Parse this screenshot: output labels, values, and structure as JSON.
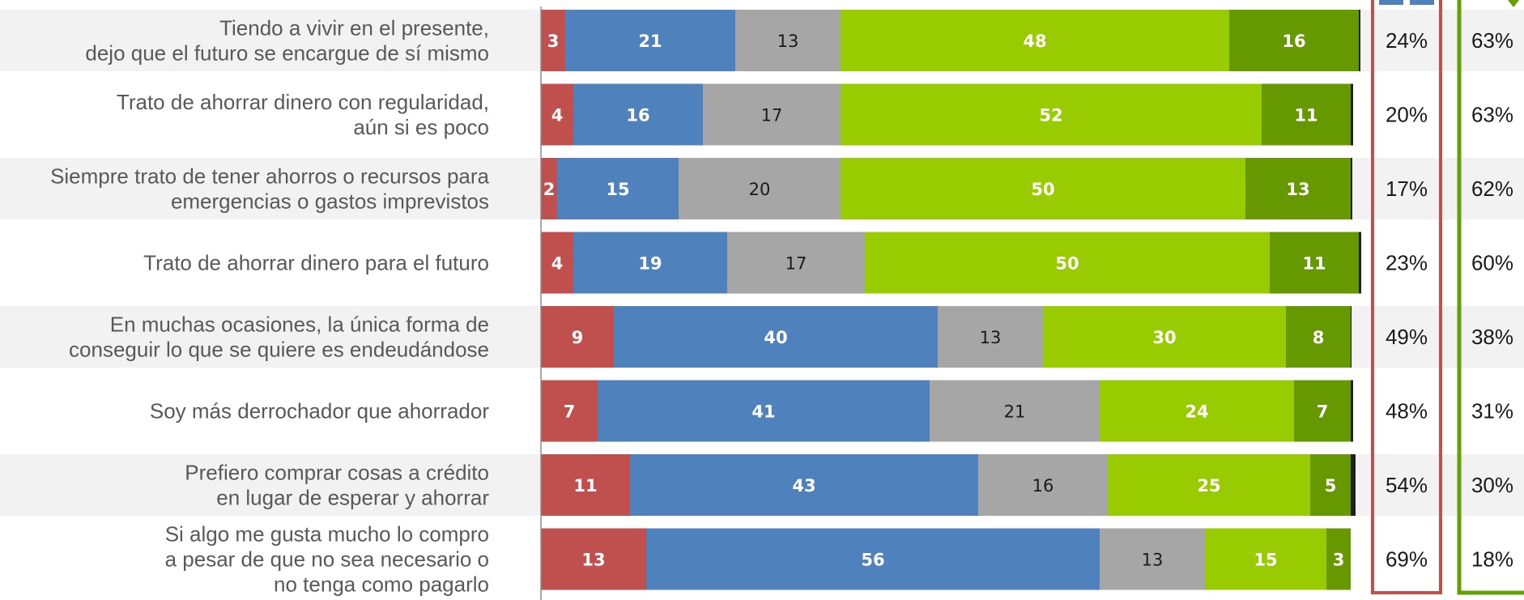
{
  "colors": {
    "red": "#c0504d",
    "blue": "#4f81bd",
    "gray": "#a6a6a6",
    "light_green": "#99cc00",
    "dark_green": "#669900",
    "black": "#1f1f1f",
    "row_band": "#f2f2f2",
    "red_box": "#c0504d",
    "green_box": "#66a000"
  },
  "chart_data": {
    "type": "bar",
    "orientation": "horizontal",
    "stacked": true,
    "categories": [
      [
        "Tiendo a vivir en el presente,",
        "dejo que el futuro se encargue de sí mismo"
      ],
      [
        "Trato de ahorrar dinero con regularidad,",
        "aún si es poco"
      ],
      [
        "Siempre trato de tener ahorros o recursos para",
        "emergencias o gastos imprevistos"
      ],
      [
        "Trato de ahorrar dinero para el futuro"
      ],
      [
        "En muchas ocasiones, la única forma de",
        "conseguir lo que se quiere es endeudándose"
      ],
      [
        "Soy más derrochador que ahorrador"
      ],
      [
        "Prefiero comprar cosas a crédito",
        "en lugar de esperar y ahorrar"
      ],
      [
        "Si algo me gusta mucho lo compro",
        "a pesar de que no sea necesario o",
        "no tenga como pagarlo"
      ]
    ],
    "series": [
      {
        "color": "red",
        "values": [
          3,
          4,
          2,
          4,
          9,
          7,
          11,
          13
        ]
      },
      {
        "color": "blue",
        "values": [
          21,
          16,
          15,
          19,
          40,
          41,
          43,
          56
        ]
      },
      {
        "color": "gray",
        "values": [
          13,
          17,
          20,
          17,
          13,
          21,
          16,
          13
        ]
      },
      {
        "color": "light_green",
        "values": [
          48,
          52,
          50,
          50,
          30,
          24,
          25,
          15
        ]
      },
      {
        "color": "dark_green",
        "values": [
          16,
          11,
          13,
          11,
          8,
          7,
          5,
          3
        ]
      },
      {
        "color": "black",
        "values": [
          0.2,
          0.3,
          0.2,
          0.3,
          0.1,
          0.3,
          0.6,
          0
        ]
      }
    ],
    "label_colors": [
      "light",
      "light",
      "dark",
      "light",
      "light",
      "none"
    ],
    "xlim": [
      0,
      100
    ],
    "summary_columns": [
      {
        "box_color": "red",
        "values": [
          "24%",
          "20%",
          "17%",
          "23%",
          "49%",
          "48%",
          "54%",
          "69%"
        ]
      },
      {
        "box_color": "green",
        "values": [
          "63%",
          "63%",
          "62%",
          "60%",
          "38%",
          "31%",
          "30%",
          "18%"
        ]
      }
    ]
  }
}
